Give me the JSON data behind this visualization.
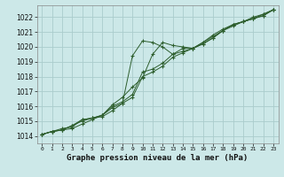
{
  "bg_color": "#cce8e8",
  "grid_color": "#aacccc",
  "line_color": "#2d5e2d",
  "title": "Graphe pression niveau de la mer (hPa)",
  "ylim": [
    1013.5,
    1022.8
  ],
  "xlim": [
    -0.5,
    23.5
  ],
  "yticks": [
    1014,
    1015,
    1016,
    1017,
    1018,
    1019,
    1020,
    1021,
    1022
  ],
  "xticks": [
    0,
    1,
    2,
    3,
    4,
    5,
    6,
    7,
    8,
    9,
    10,
    11,
    12,
    13,
    14,
    15,
    16,
    17,
    18,
    19,
    20,
    21,
    22,
    23
  ],
  "series": [
    [
      1014.1,
      1014.3,
      1014.4,
      1014.5,
      1014.8,
      1015.1,
      1015.4,
      1016.1,
      1016.6,
      1017.3,
      1017.9,
      1019.5,
      1020.3,
      1020.1,
      1020.0,
      1019.9,
      1020.2,
      1020.6,
      1021.1,
      1021.4,
      1021.7,
      1021.9,
      1022.1,
      1022.5
    ],
    [
      1014.1,
      1014.3,
      1014.4,
      1014.7,
      1015.1,
      1015.2,
      1015.4,
      1016.0,
      1016.3,
      1016.8,
      1018.3,
      1018.5,
      1018.9,
      1019.5,
      1019.7,
      1019.9,
      1020.3,
      1020.8,
      1021.2,
      1021.5,
      1021.7,
      1022.0,
      1022.2,
      1022.5
    ],
    [
      1014.1,
      1014.3,
      1014.4,
      1014.7,
      1015.0,
      1015.2,
      1015.4,
      1015.9,
      1016.2,
      1016.6,
      1018.0,
      1018.3,
      1018.7,
      1019.3,
      1019.6,
      1019.9,
      1020.3,
      1020.7,
      1021.1,
      1021.5,
      1021.7,
      1021.9,
      1022.2,
      1022.5
    ],
    [
      1014.1,
      1014.3,
      1014.5,
      1014.6,
      1015.1,
      1015.2,
      1015.3,
      1015.7,
      1016.2,
      1019.4,
      1020.4,
      1020.3,
      1020.0,
      1019.5,
      1019.9,
      1019.9,
      1020.2,
      1020.6,
      1021.1,
      1021.5,
      1021.7,
      1021.9,
      1022.1,
      1022.5
    ]
  ]
}
